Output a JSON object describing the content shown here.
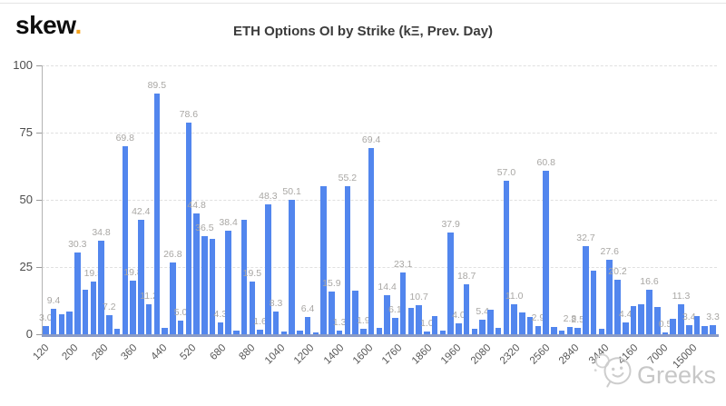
{
  "logo": {
    "text": "skew",
    "dot": "."
  },
  "watermark": {
    "text": "Greeks"
  },
  "colors": {
    "bar_blue": "#5286ee",
    "baseline_blue_grey": "#8b9cc6",
    "value_label_grey": "#a9a7a4",
    "logo_dot_orange": "#f5a31c",
    "watermark_grey": "#c7c7c7"
  },
  "chart_data": {
    "type": "bar",
    "title": "ETH Options OI by Strike (kΞ, Prev. Day)",
    "xlabel": "",
    "ylabel": "",
    "ylim": [
      0,
      100
    ],
    "yticks": [
      0,
      25,
      50,
      75,
      100
    ],
    "grid": "horizontal dashed",
    "legend": "none",
    "x_tick_labels": [
      "120",
      "200",
      "280",
      "360",
      "440",
      "520",
      "680",
      "880",
      "1040",
      "1200",
      "1400",
      "1600",
      "1760",
      "1860",
      "1960",
      "2080",
      "2320",
      "2560",
      "2840",
      "3440",
      "4160",
      "7000",
      "15000"
    ],
    "bars": [
      {
        "v": 3.0,
        "label": "3.0"
      },
      {
        "v": 9.4,
        "label": "9.4"
      },
      {
        "v": 7.5
      },
      {
        "v": 8.5
      },
      {
        "v": 30.3,
        "label": "30.3"
      },
      {
        "v": 16.5
      },
      {
        "v": 19.5,
        "label": "19.5"
      },
      {
        "v": 34.8,
        "label": "34.8"
      },
      {
        "v": 7.2,
        "label": "7.2"
      },
      {
        "v": 2.0
      },
      {
        "v": 69.8,
        "label": "69.8"
      },
      {
        "v": 19.8,
        "label": "19.8"
      },
      {
        "v": 42.4,
        "label": "42.4"
      },
      {
        "v": 11.2,
        "label": "11.2"
      },
      {
        "v": 89.5,
        "label": "89.5"
      },
      {
        "v": 2.3
      },
      {
        "v": 26.8,
        "label": "26.8"
      },
      {
        "v": 5.0,
        "label": "5.0"
      },
      {
        "v": 78.6,
        "label": "78.6"
      },
      {
        "v": 44.8,
        "label": "44.8"
      },
      {
        "v": 36.5,
        "label": "36.5"
      },
      {
        "v": 35.5
      },
      {
        "v": 4.3,
        "label": "4.3"
      },
      {
        "v": 38.4,
        "label": "38.4"
      },
      {
        "v": 1.5
      },
      {
        "v": 42.6
      },
      {
        "v": 19.5,
        "label": "19.5"
      },
      {
        "v": 1.6,
        "label": "1.6"
      },
      {
        "v": 48.3,
        "label": "48.3"
      },
      {
        "v": 8.3,
        "label": "8.3"
      },
      {
        "v": 1.0
      },
      {
        "v": 50.1,
        "label": "50.1"
      },
      {
        "v": 1.2
      },
      {
        "v": 6.4,
        "label": "6.4"
      },
      {
        "v": 0.8
      },
      {
        "v": 55.0
      },
      {
        "v": 15.9,
        "label": "15.9"
      },
      {
        "v": 1.3,
        "label": "1.3"
      },
      {
        "v": 55.2,
        "label": "55.2"
      },
      {
        "v": 16.2
      },
      {
        "v": 1.9,
        "label": "1.9"
      },
      {
        "v": 69.4,
        "label": "69.4"
      },
      {
        "v": 2.2
      },
      {
        "v": 14.4,
        "label": "14.4"
      },
      {
        "v": 6.1,
        "label": "6.1"
      },
      {
        "v": 23.1,
        "label": "23.1"
      },
      {
        "v": 9.7
      },
      {
        "v": 10.7,
        "label": "10.7"
      },
      {
        "v": 1.0,
        "label": "1.0"
      },
      {
        "v": 6.8
      },
      {
        "v": 1.5
      },
      {
        "v": 37.9,
        "label": "37.9"
      },
      {
        "v": 4.0,
        "label": "4.0"
      },
      {
        "v": 18.7,
        "label": "18.7"
      },
      {
        "v": 2.0
      },
      {
        "v": 5.4,
        "label": "5.4"
      },
      {
        "v": 9.0
      },
      {
        "v": 2.2
      },
      {
        "v": 57.0,
        "label": "57.0"
      },
      {
        "v": 11.0,
        "label": "11.0"
      },
      {
        "v": 8.2
      },
      {
        "v": 6.5
      },
      {
        "v": 2.9,
        "label": "2.9"
      },
      {
        "v": 60.8,
        "label": "60.8"
      },
      {
        "v": 2.6
      },
      {
        "v": 1.5
      },
      {
        "v": 2.8,
        "label": "2.8"
      },
      {
        "v": 2.5,
        "label": "2.5"
      },
      {
        "v": 32.7,
        "label": "32.7"
      },
      {
        "v": 23.8
      },
      {
        "v": 2.0
      },
      {
        "v": 27.6,
        "label": "27.6"
      },
      {
        "v": 20.2,
        "label": "20.2"
      },
      {
        "v": 4.4,
        "label": "4.4"
      },
      {
        "v": 10.5
      },
      {
        "v": 11.0
      },
      {
        "v": 16.6,
        "label": "16.6"
      },
      {
        "v": 10.2
      },
      {
        "v": 0.5,
        "label": "0.5"
      },
      {
        "v": 5.7
      },
      {
        "v": 11.3,
        "label": "11.3"
      },
      {
        "v": 3.4,
        "label": "3.4"
      },
      {
        "v": 6.8
      },
      {
        "v": 3.0
      },
      {
        "v": 3.3,
        "label": "3.3"
      }
    ]
  }
}
